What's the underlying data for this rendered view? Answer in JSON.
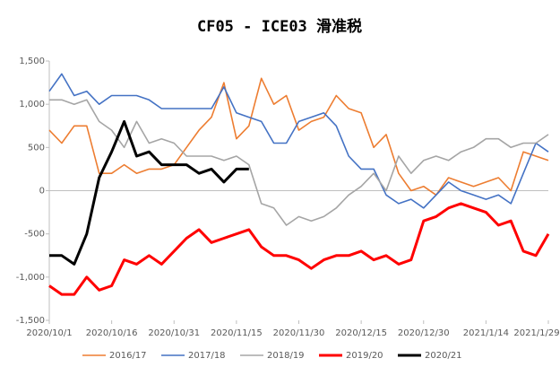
{
  "chart_data": {
    "type": "line",
    "title": "CF05 - ICE03 滑准税",
    "x": [
      "2020/10/1",
      "2020/10/4",
      "2020/10/7",
      "2020/10/10",
      "2020/10/13",
      "2020/10/16",
      "2020/10/19",
      "2020/10/22",
      "2020/10/25",
      "2020/10/28",
      "2020/10/31",
      "2020/11/3",
      "2020/11/6",
      "2020/11/9",
      "2020/11/12",
      "2020/11/15",
      "2020/11/18",
      "2020/11/21",
      "2020/11/24",
      "2020/11/27",
      "2020/11/30",
      "2020/12/3",
      "2020/12/6",
      "2020/12/9",
      "2020/12/12",
      "2020/12/15",
      "2020/12/18",
      "2020/12/21",
      "2020/12/24",
      "2020/12/27",
      "2020/12/30",
      "2021/1/2",
      "2021/1/5",
      "2021/1/8",
      "2021/1/11",
      "2021/1/14",
      "2021/1/17",
      "2021/1/20",
      "2021/1/23",
      "2021/1/26",
      "2021/1/29"
    ],
    "xticks": [
      "2020/10/1",
      "2020/10/16",
      "2020/10/31",
      "2020/11/15",
      "2020/11/30",
      "2020/12/15",
      "2020/12/30",
      "2021/1/14",
      "2021/1/29"
    ],
    "ylim": [
      -1500,
      1500
    ],
    "yticks": [
      {
        "value": 1500,
        "label": "1,500"
      },
      {
        "value": 1000,
        "label": "1,000"
      },
      500,
      0,
      -500,
      {
        "value": -1000,
        "label": "-1,000"
      },
      {
        "value": -1500,
        "label": "-1,500"
      }
    ],
    "legend": "bottom",
    "series": [
      {
        "name": "2016/17",
        "color": "#ED7D31",
        "values": [
          700,
          550,
          750,
          750,
          200,
          200,
          300,
          200,
          250,
          250,
          300,
          500,
          700,
          850,
          1250,
          600,
          750,
          1300,
          1000,
          1100,
          700,
          800,
          850,
          1100,
          950,
          900,
          500,
          650,
          200,
          0,
          50,
          -50,
          150,
          100,
          50,
          100,
          150,
          0,
          450,
          400,
          350
        ]
      },
      {
        "name": "2017/18",
        "color": "#4472C4",
        "values": [
          1150,
          1350,
          1100,
          1150,
          1000,
          1100,
          1100,
          1100,
          1050,
          950,
          950,
          950,
          950,
          950,
          1200,
          900,
          850,
          800,
          550,
          550,
          800,
          850,
          900,
          750,
          400,
          250,
          250,
          -50,
          -150,
          -100,
          -200,
          -50,
          100,
          0,
          -50,
          -100,
          -50,
          -150,
          200,
          550,
          450
        ]
      },
      {
        "name": "2018/19",
        "color": "#A5A5A5",
        "values": [
          1050,
          1050,
          1000,
          1050,
          800,
          700,
          500,
          800,
          550,
          600,
          550,
          400,
          400,
          400,
          350,
          400,
          300,
          -150,
          -200,
          -400,
          -300,
          -350,
          -300,
          -200,
          -50,
          50,
          200,
          0,
          400,
          200,
          350,
          400,
          350,
          450,
          500,
          600,
          600,
          500,
          550,
          550,
          650
        ]
      },
      {
        "name": "2019/20",
        "color": "#FF0000",
        "values": [
          -1100,
          -1200,
          -1200,
          -1000,
          -1150,
          -1100,
          -800,
          -850,
          -750,
          -850,
          -700,
          -550,
          -450,
          -600,
          -550,
          -500,
          -450,
          -650,
          -750,
          -750,
          -800,
          -900,
          -800,
          -750,
          -750,
          -700,
          -800,
          -750,
          -850,
          -800,
          -350,
          -300,
          -200,
          -150,
          -200,
          -250,
          -400,
          -350,
          -700,
          -750,
          -500
        ]
      },
      {
        "name": "2020/21",
        "color": "#000000",
        "values": [
          -750,
          -750,
          -850,
          -500,
          150,
          450,
          800,
          400,
          450,
          300,
          300,
          300,
          200,
          250,
          100,
          250,
          250,
          null,
          null,
          null,
          null,
          null,
          null,
          null,
          null,
          null,
          null,
          null,
          null,
          null,
          null,
          null,
          null,
          null,
          null,
          null,
          null,
          null,
          null,
          null,
          null
        ]
      }
    ]
  }
}
